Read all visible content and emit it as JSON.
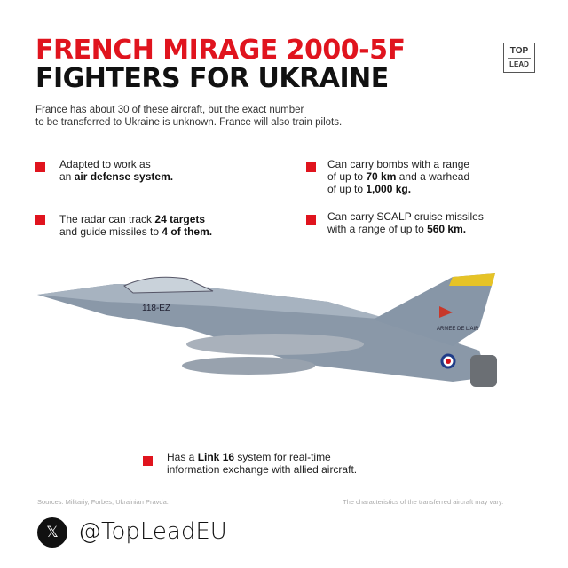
{
  "header": {
    "title_line1": "FRENCH MIRAGE 2000-5F",
    "title_line2": "FIGHTERS FOR UKRAINE"
  },
  "logo": {
    "top": "TOP",
    "bottom": "LEAD"
  },
  "intro": {
    "line1": "France has about 30 of these aircraft, but the exact number",
    "line2": "to be transferred to Ukraine is unknown. France will also train pilots."
  },
  "facts": [
    {
      "pre": "Adapted to work as",
      "pre2": "an ",
      "bold": "air defense system."
    },
    {
      "pre": "The radar can track ",
      "bold": "24 targets",
      "pre2": "and guide missiles to ",
      "bold2": "4 of them."
    },
    {
      "pre": "Can carry bombs with a range",
      "pre2": " of up to ",
      "bold": "70 km",
      "mid": " and a warhead",
      "pre3": "of up to ",
      "bold2": "1,000 kg."
    },
    {
      "pre": "Can carry SCALP cruise missiles",
      "pre2": "with a range of up to ",
      "bold": "560 km."
    },
    {
      "pre": "Has a ",
      "bold": "Link 16",
      "mid": " system for real-time",
      "pre2": "information exchange with allied aircraft."
    }
  ],
  "aircraft": {
    "tail_code": "118-EZ",
    "fin_text": "ARMEE DE L'AIR"
  },
  "footer": {
    "sources": "Sources: Militariy, Forbes, Ukrainian Pravda.",
    "note": "The characteristics of the transferred aircraft may vary.",
    "handle": "@TopLeadEU",
    "social_icon": "x-logo-icon"
  },
  "colors": {
    "accent": "#e0141e"
  }
}
